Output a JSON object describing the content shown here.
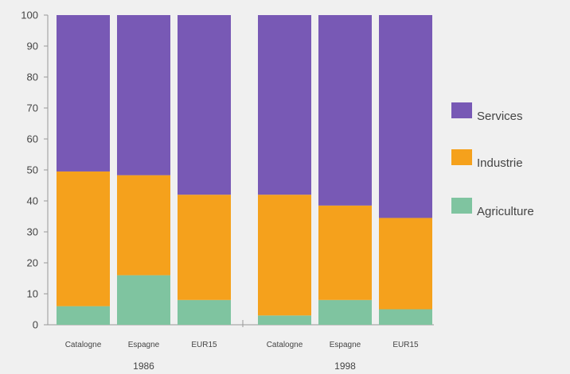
{
  "chart_data": {
    "type": "bar",
    "stacked": true,
    "ylim": [
      0,
      100
    ],
    "yticks": [
      0,
      10,
      20,
      30,
      40,
      50,
      60,
      70,
      80,
      90,
      100
    ],
    "grid": false,
    "legend_position": "right",
    "groups": [
      {
        "label": "1986",
        "categories": [
          "Catalogne",
          "Espagne",
          "EUR15"
        ]
      },
      {
        "label": "1998",
        "categories": [
          "Catalogne",
          "Espagne",
          "EUR15"
        ]
      }
    ],
    "series": [
      {
        "name": "Agriculture",
        "color": "#7fc4a0",
        "values": [
          6,
          16,
          8,
          3,
          8,
          5
        ]
      },
      {
        "name": "Industrie",
        "color": "#f5a11c",
        "values": [
          43.5,
          32.3,
          34,
          39,
          30.5,
          29.5
        ]
      },
      {
        "name": "Services",
        "color": "#7859b5",
        "values": [
          50.5,
          51.7,
          58,
          58,
          61.5,
          65.5
        ]
      }
    ]
  }
}
